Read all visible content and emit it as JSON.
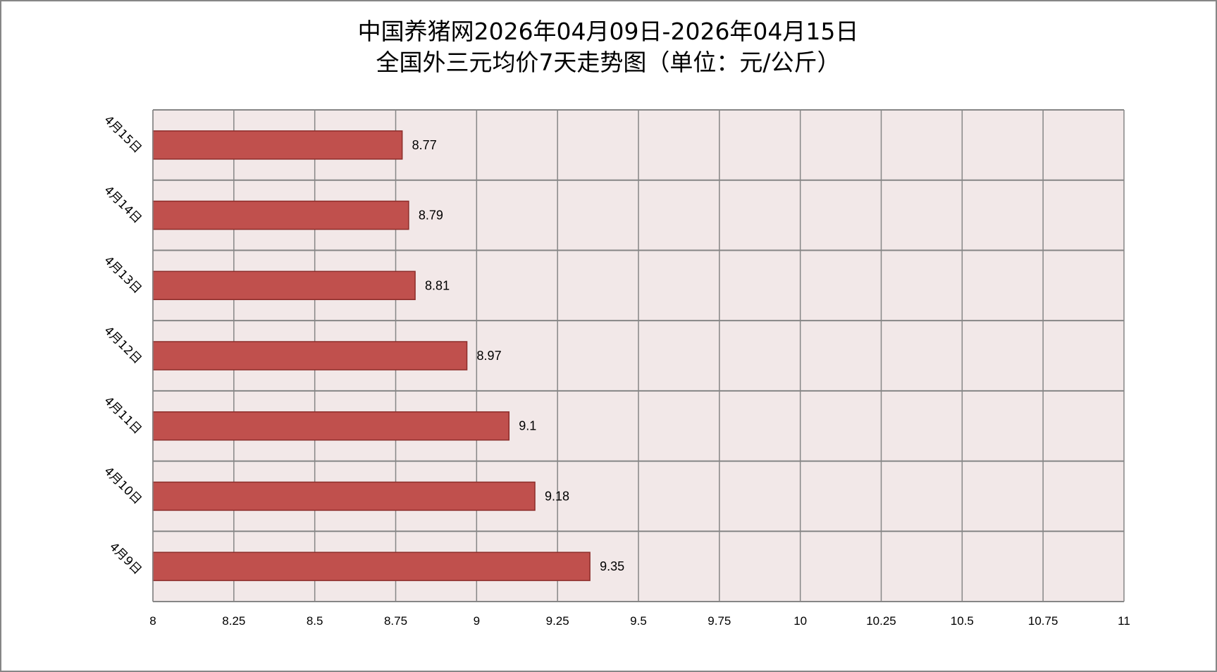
{
  "chart_data": {
    "type": "bar",
    "orientation": "horizontal",
    "title": [
      "中国养猪网2026年04月09日-2026年04月15日",
      "全国外三元均价7天走势图（单位：元/公斤）"
    ],
    "categories": [
      "4月9日",
      "4月10日",
      "4月11日",
      "4月12日",
      "4月13日",
      "4月14日",
      "4月15日"
    ],
    "values": [
      9.35,
      9.18,
      9.1,
      8.97,
      8.81,
      8.79,
      8.77
    ],
    "data_labels": [
      "9.35",
      "9.18",
      "9.1",
      "8.97",
      "8.81",
      "8.79",
      "8.77"
    ],
    "xlim": [
      8,
      11
    ],
    "xticks": [
      "8",
      "8.25",
      "8.5",
      "8.75",
      "9",
      "9.25",
      "9.5",
      "9.75",
      "10",
      "10.25",
      "10.5",
      "10.75",
      "11"
    ],
    "grid": true,
    "legend": "none",
    "colors": {
      "bar": "#C0504D",
      "bar_border": "#8C2D2A",
      "plot_bg": "#F2E8E8",
      "grid": "#868686"
    }
  }
}
